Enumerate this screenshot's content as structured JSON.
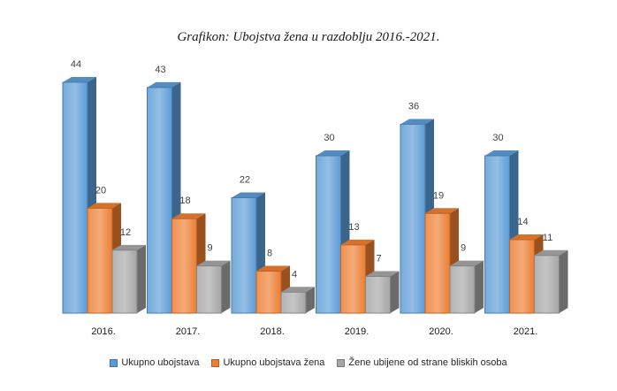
{
  "chart_data": {
    "type": "bar",
    "title": "Grafikon: Ubojstva žena u razdoblju 2016.-2021.",
    "categories": [
      "2016.",
      "2017.",
      "2018.",
      "2019.",
      "2020.",
      "2021."
    ],
    "series": [
      {
        "name": "Ukupno ubojstava",
        "values": [
          44,
          43,
          22,
          30,
          36,
          30
        ],
        "color": "#5b9bd5"
      },
      {
        "name": "Ukupno ubojstava žena",
        "values": [
          20,
          18,
          8,
          13,
          19,
          14
        ],
        "color": "#ed7d31"
      },
      {
        "name": "Žene ubijene od strane bliskih osoba",
        "values": [
          12,
          9,
          4,
          7,
          9,
          11
        ],
        "color": "#a5a5a5"
      }
    ],
    "ylim": [
      0,
      44
    ],
    "xlabel": "",
    "ylabel": "",
    "grid": false,
    "legend": "bottom"
  }
}
